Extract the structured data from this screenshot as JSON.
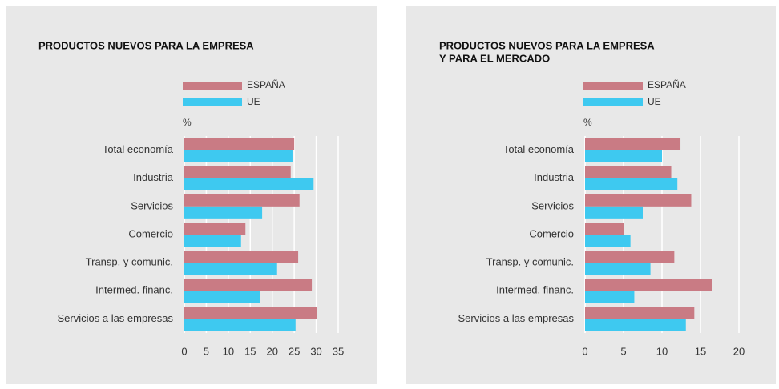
{
  "chart_data": [
    {
      "type": "bar",
      "orientation": "horizontal",
      "title": [
        "PRODUCTOS NUEVOS PARA LA EMPRESA"
      ],
      "unit_label": "%",
      "categories": [
        "Total economía",
        "Industria",
        "Servicios",
        "Comercio",
        "Transp. y comunic.",
        "Intermed. financ.",
        "Servicios a las empresas"
      ],
      "series": [
        {
          "name": "ESPAÑA",
          "color": "#c97b84",
          "values": [
            25,
            24.2,
            26.2,
            13.9,
            25.9,
            29,
            30.1
          ]
        },
        {
          "name": "UE",
          "color": "#3ec9f0",
          "values": [
            24.6,
            29.4,
            17.7,
            12.9,
            21.1,
            17.3,
            25.3
          ]
        }
      ],
      "xlim": [
        0,
        35
      ],
      "xticks": [
        0,
        5,
        10,
        15,
        20,
        25,
        30,
        35
      ],
      "grid": true
    },
    {
      "type": "bar",
      "orientation": "horizontal",
      "title": [
        "PRODUCTOS NUEVOS PARA LA EMPRESA",
        "Y PARA EL MERCADO"
      ],
      "unit_label": "%",
      "categories": [
        "Total economía",
        "Industria",
        "Servicios",
        "Comercio",
        "Transp. y comunic.",
        "Intermed. financ.",
        "Servicios a las empresas"
      ],
      "series": [
        {
          "name": "ESPAÑA",
          "color": "#c97b84",
          "values": [
            12.4,
            11.2,
            13.8,
            5,
            11.6,
            16.5,
            14.2
          ]
        },
        {
          "name": "UE",
          "color": "#3ec9f0",
          "values": [
            10,
            12,
            7.5,
            5.9,
            8.5,
            6.4,
            13.1
          ]
        }
      ],
      "xlim": [
        0,
        20
      ],
      "xticks": [
        0,
        5,
        10,
        15,
        20
      ],
      "grid": true
    }
  ]
}
